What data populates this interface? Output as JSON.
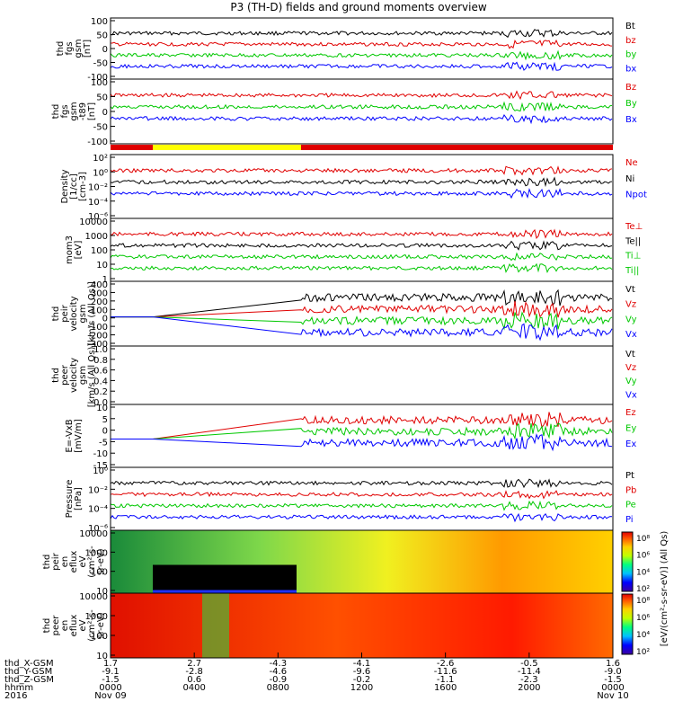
{
  "title": "P3 (TH-D) fields and ground moments overview",
  "colors": {
    "black": "#000000",
    "red": "#e00000",
    "green": "#00c800",
    "blue": "#0000ff",
    "yellow": "#ffff00"
  },
  "chart_data": [
    {
      "type": "line",
      "ylabel": [
        "thd",
        "fgs",
        "gsm",
        "[nT]"
      ],
      "yticks": [
        "100",
        "50",
        "0",
        "-50",
        "-100"
      ],
      "legend": [
        {
          "label": "Bt",
          "color": "black"
        },
        {
          "label": "bz",
          "color": "red"
        },
        {
          "label": "by",
          "color": "green"
        },
        {
          "label": "bx",
          "color": "blue"
        }
      ]
    },
    {
      "type": "line",
      "ylabel": [
        "thd",
        "fgs",
        "gsm",
        "-t89",
        "[nT]"
      ],
      "yticks": [
        "100",
        "50",
        "0",
        "-50",
        "-100"
      ],
      "legend": [
        {
          "label": "Bz",
          "color": "red"
        },
        {
          "label": "By",
          "color": "green"
        },
        {
          "label": "Bx",
          "color": "blue"
        }
      ]
    },
    {
      "type": "line",
      "ylabel": [
        "Density",
        "[1/cc]",
        "[cm-3]"
      ],
      "yticks": [
        "10²",
        "10⁰",
        "10⁻²",
        "10⁻⁴",
        "10⁻⁶"
      ],
      "legend": [
        {
          "label": "Ne",
          "color": "red"
        },
        {
          "label": "Ni",
          "color": "black"
        },
        {
          "label": "Npot",
          "color": "blue"
        }
      ]
    },
    {
      "type": "line",
      "ylabel": [
        "mom3",
        "[eV]"
      ],
      "yticks": [
        "10000",
        "1000",
        "100",
        "10",
        "1"
      ],
      "legend": [
        {
          "label": "Te⊥",
          "color": "red"
        },
        {
          "label": "Te||",
          "color": "black"
        },
        {
          "label": "Ti⊥",
          "color": "green"
        },
        {
          "label": "Ti||",
          "color": "green"
        }
      ]
    },
    {
      "type": "line",
      "ylabel": [
        "thd",
        "peir",
        "velocity",
        "gsm",
        "[km/s (All Qs)]"
      ],
      "yticks": [
        "400",
        "300",
        "200",
        "100",
        "0",
        "-100",
        "-200",
        "-300"
      ],
      "legend": [
        {
          "label": "Vt",
          "color": "black"
        },
        {
          "label": "Vz",
          "color": "red"
        },
        {
          "label": "Vy",
          "color": "green"
        },
        {
          "label": "Vx",
          "color": "blue"
        }
      ]
    },
    {
      "type": "line",
      "ylabel": [
        "thd",
        "peer",
        "velocity",
        "gsm",
        "[km/s (All Qs)]"
      ],
      "yticks": [
        "1.0",
        "0.8",
        "0.6",
        "0.4",
        "0.2",
        "0.0"
      ],
      "legend": [
        {
          "label": "Vt",
          "color": "black"
        },
        {
          "label": "Vz",
          "color": "red"
        },
        {
          "label": "Vy",
          "color": "green"
        },
        {
          "label": "Vx",
          "color": "blue"
        }
      ]
    },
    {
      "type": "line",
      "ylabel": [
        "E=-VxB",
        "[mV/m]"
      ],
      "yticks": [
        "10",
        "5",
        "0",
        "-5",
        "-10",
        "-15"
      ],
      "legend": [
        {
          "label": "Ez",
          "color": "red"
        },
        {
          "label": "Ey",
          "color": "green"
        },
        {
          "label": "Ex",
          "color": "blue"
        }
      ]
    },
    {
      "type": "line",
      "ylabel": [
        "Pressure",
        "[nPa]"
      ],
      "yticks": [
        "10⁰",
        "10⁻²",
        "10⁻⁴",
        "10⁻⁶"
      ],
      "legend": [
        {
          "label": "Pt",
          "color": "black"
        },
        {
          "label": "Pb",
          "color": "red"
        },
        {
          "label": "Pe",
          "color": "green"
        },
        {
          "label": "Pi",
          "color": "blue"
        }
      ]
    },
    {
      "type": "heatmap",
      "ylabel": [
        "thd",
        "peir",
        "en",
        "eflux",
        "eV",
        "(cm²-s-",
        "sr-eV)"
      ],
      "yticks": [
        "10000",
        "1000",
        "100",
        "10"
      ],
      "legend": []
    },
    {
      "type": "heatmap",
      "ylabel": [
        "thd",
        "peer",
        "en",
        "eflux",
        "eV",
        "(cm²-s-",
        "sr-eV)"
      ],
      "yticks": [
        "10000",
        "1000",
        "100",
        "10"
      ],
      "legend": []
    }
  ],
  "colorbar": {
    "label": "[eV/(cm²-s-sr-eV)] (All Qs)",
    "ticks_upper": [
      "10⁸",
      "10⁶",
      "10⁴",
      "10²"
    ],
    "ticks_lower": [
      "10⁸",
      "10⁶",
      "10⁴",
      "10²"
    ]
  },
  "xaxis": {
    "row_labels": [
      "thd_X-GSM",
      "thd_Y-GSM",
      "thd_Z-GSM",
      "hhmm",
      "2016"
    ],
    "columns": [
      {
        "v": [
          "1.7",
          "-9.1",
          "-1.5",
          "0000",
          "Nov 09"
        ]
      },
      {
        "v": [
          "2.7",
          "-2.8",
          "0.6",
          "0400",
          ""
        ]
      },
      {
        "v": [
          "-4.3",
          "-4.6",
          "-0.9",
          "0800",
          ""
        ]
      },
      {
        "v": [
          "-4.1",
          "-9.6",
          "-0.2",
          "1200",
          ""
        ]
      },
      {
        "v": [
          "-2.6",
          "-11.6",
          "-1.1",
          "1600",
          ""
        ]
      },
      {
        "v": [
          "-0.5",
          "-11.4",
          "-2.3",
          "2000",
          ""
        ]
      },
      {
        "v": [
          "1.6",
          "-9.0",
          "-1.5",
          "0000",
          "Nov 10"
        ]
      }
    ]
  }
}
